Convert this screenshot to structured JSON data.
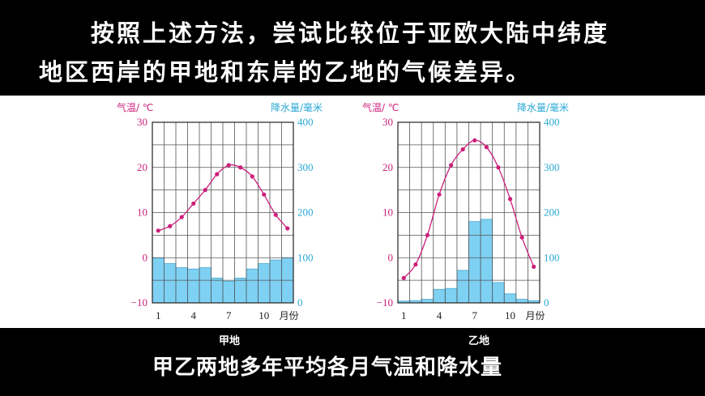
{
  "instruction": {
    "line1": "按照上述方法，尝试比较位于亚欧大陆中纬度",
    "line2": "地区西岸的甲地和东岸的乙地的气候差异。"
  },
  "caption": "甲乙两地多年平均各月气温和降水量",
  "colors": {
    "temp": "#cc1f7a",
    "precip_axis": "#29a8d6",
    "bar_fill": "#7fd1f3",
    "bar_stroke": "#4aa7cc"
  },
  "chart_data": [
    {
      "type": "bar",
      "title": "甲地",
      "temp_label": "气温/ ℃",
      "precip_label": "降水量/毫米",
      "xlabel": "月份",
      "x_ticks": [
        "1",
        "4",
        "7",
        "10"
      ],
      "temp_ticks": [
        "30",
        "20",
        "10",
        "0",
        "−10"
      ],
      "precip_ticks": [
        "400",
        "300",
        "200",
        "100",
        "0"
      ],
      "temp_ylim": [
        -10,
        30
      ],
      "precip_ylim": [
        0,
        400
      ],
      "months": [
        1,
        2,
        3,
        4,
        5,
        6,
        7,
        8,
        9,
        10,
        11,
        12
      ],
      "series": [
        {
          "name": "气温",
          "kind": "line",
          "values": [
            6,
            7,
            9,
            12,
            15,
            18.5,
            20.5,
            20,
            18,
            14,
            9.5,
            6.5
          ]
        },
        {
          "name": "降水量",
          "kind": "bar",
          "values": [
            100,
            87,
            78,
            75,
            78,
            55,
            48,
            55,
            75,
            87,
            95,
            100
          ]
        }
      ]
    },
    {
      "type": "bar",
      "title": "乙地",
      "temp_label": "气温/ ℃",
      "precip_label": "降水量/毫米",
      "xlabel": "月份",
      "x_ticks": [
        "1",
        "4",
        "7",
        "10"
      ],
      "temp_ticks": [
        "30",
        "20",
        "10",
        "0",
        "−10"
      ],
      "precip_ticks": [
        "400",
        "300",
        "200",
        "100",
        "0"
      ],
      "temp_ylim": [
        -10,
        30
      ],
      "precip_ylim": [
        0,
        400
      ],
      "months": [
        1,
        2,
        3,
        4,
        5,
        6,
        7,
        8,
        9,
        10,
        11,
        12
      ],
      "series": [
        {
          "name": "气温",
          "kind": "line",
          "values": [
            -4.5,
            -1.5,
            5,
            14,
            20.5,
            24,
            26,
            24.5,
            20,
            13,
            4.5,
            -2
          ]
        },
        {
          "name": "降水量",
          "kind": "bar",
          "values": [
            4,
            5,
            8,
            30,
            32,
            72,
            180,
            185,
            45,
            20,
            8,
            5
          ]
        }
      ]
    }
  ]
}
